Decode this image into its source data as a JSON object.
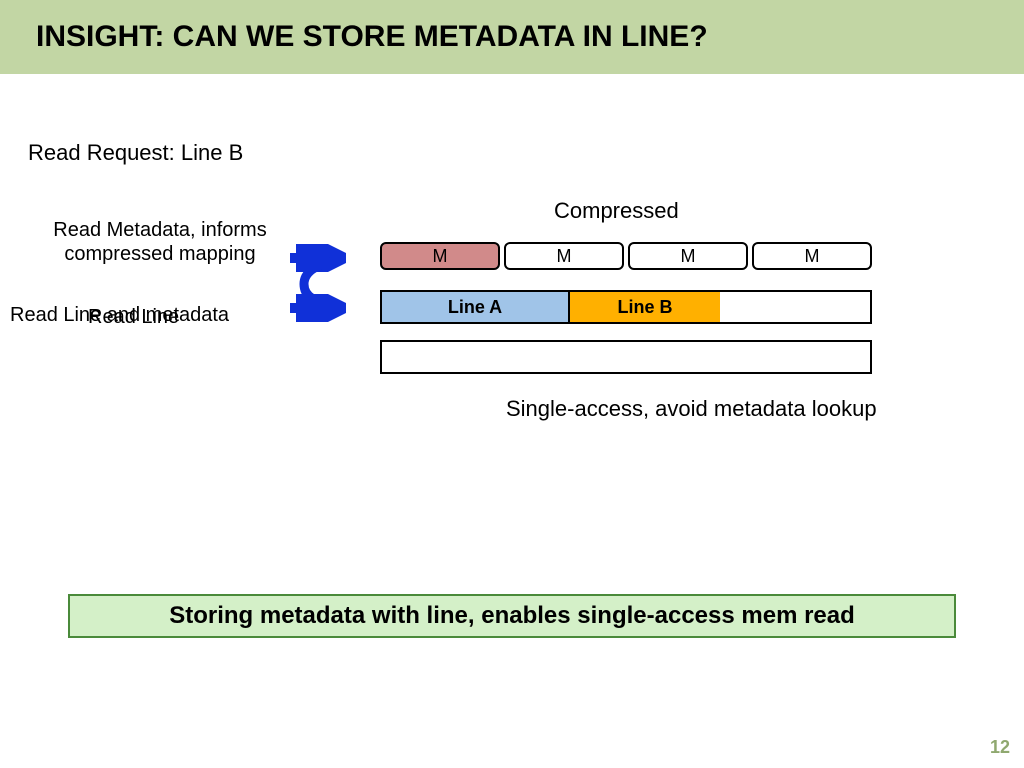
{
  "title": "INSIGHT: CAN WE STORE METADATA IN LINE?",
  "title_bg": "#c2d6a4",
  "title_color": "#000000",
  "read_request": "Read Request: Line B",
  "read_metadata": "Read Metadata, informs compressed mapping",
  "read_line_and_meta": "Read Line and metadata",
  "read_line": "Read Line",
  "compressed_label": "Compressed",
  "metadata_cells": [
    {
      "label": "M",
      "bg": "#d18a8a"
    },
    {
      "label": "M",
      "bg": "#ffffff"
    },
    {
      "label": "M",
      "bg": "#ffffff"
    },
    {
      "label": "M",
      "bg": "#ffffff"
    }
  ],
  "line_cells": [
    {
      "label": "Line A",
      "bg": "#a0c4e8",
      "width": 188
    },
    {
      "label": "Line B",
      "bg": "#ffb000",
      "width": 150
    }
  ],
  "single_access": "Single-access, avoid metadata lookup",
  "footer": "Storing metadata with line, enables single-access mem read",
  "footer_bg": "#d4f0c8",
  "page_number": "12",
  "page_number_color": "#8fa86f",
  "arrow_color": "#1030d8"
}
